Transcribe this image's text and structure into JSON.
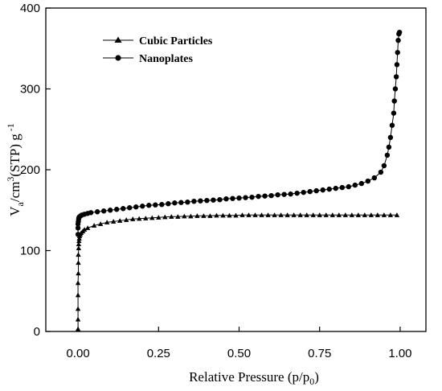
{
  "chart_data": {
    "type": "line",
    "title": "",
    "xlabel": "Relative Pressure (p/p0)",
    "xlabel_parts": {
      "main": "Relative Pressure (p/p",
      "sub": "0",
      "close": ")"
    },
    "ylabel": "Va/cm3(STP) g-1",
    "ylabel_parts": {
      "v": "V",
      "v_sub": "a",
      "unit": "/cm",
      "unit_sup": "3",
      "stp": "(STP) g",
      "g_sup": "-1"
    },
    "xlim": [
      -0.1,
      1.08
    ],
    "ylim": [
      0,
      400
    ],
    "xticks": [
      0.0,
      0.25,
      0.5,
      0.75,
      1.0
    ],
    "xtick_labels": [
      "0.00",
      "0.25",
      "0.50",
      "0.75",
      "1.00"
    ],
    "yticks": [
      0,
      100,
      200,
      300,
      400
    ],
    "ytick_labels": [
      "0",
      "100",
      "200",
      "300",
      "400"
    ],
    "legend_position": "top-left",
    "grid": false,
    "series": [
      {
        "name": "Cubic Particles",
        "marker": "triangle",
        "x": [
          0.0,
          0.0,
          0.0,
          0.0,
          0.0,
          0.001,
          0.001,
          0.001,
          0.002,
          0.002,
          0.003,
          0.004,
          0.005,
          0.007,
          0.01,
          0.015,
          0.02,
          0.03,
          0.05,
          0.07,
          0.09,
          0.11,
          0.13,
          0.15,
          0.17,
          0.19,
          0.21,
          0.23,
          0.25,
          0.27,
          0.29,
          0.31,
          0.33,
          0.35,
          0.37,
          0.39,
          0.41,
          0.43,
          0.45,
          0.47,
          0.49,
          0.51,
          0.53,
          0.55,
          0.57,
          0.59,
          0.61,
          0.63,
          0.65,
          0.67,
          0.69,
          0.71,
          0.73,
          0.75,
          0.77,
          0.79,
          0.81,
          0.83,
          0.85,
          0.87,
          0.89,
          0.91,
          0.93,
          0.95,
          0.97,
          0.99
        ],
        "values": [
          3,
          15,
          28,
          45,
          60,
          72,
          85,
          95,
          103,
          108,
          112,
          115,
          118,
          120,
          122,
          124,
          126,
          128,
          131,
          133,
          135,
          136,
          137,
          138,
          139,
          139.5,
          140,
          140.5,
          141,
          141.5,
          142,
          142,
          142.5,
          142.5,
          143,
          143,
          143,
          143.5,
          143.5,
          143.5,
          143.5,
          144,
          144,
          144,
          144,
          144,
          144,
          144,
          144,
          144,
          144,
          144,
          144,
          144,
          144,
          144,
          144,
          144,
          144,
          144,
          144,
          144,
          144,
          144,
          144,
          144
        ]
      },
      {
        "name": "Nanoplates",
        "marker": "circle",
        "x": [
          0.0,
          0.0,
          0.0,
          0.001,
          0.002,
          0.003,
          0.005,
          0.008,
          0.012,
          0.02,
          0.03,
          0.04,
          0.06,
          0.08,
          0.1,
          0.12,
          0.14,
          0.16,
          0.18,
          0.2,
          0.22,
          0.24,
          0.26,
          0.28,
          0.3,
          0.32,
          0.34,
          0.36,
          0.38,
          0.4,
          0.42,
          0.44,
          0.46,
          0.48,
          0.5,
          0.52,
          0.54,
          0.56,
          0.58,
          0.6,
          0.62,
          0.64,
          0.66,
          0.68,
          0.7,
          0.72,
          0.74,
          0.76,
          0.78,
          0.8,
          0.82,
          0.84,
          0.86,
          0.88,
          0.9,
          0.92,
          0.94,
          0.95,
          0.96,
          0.965,
          0.97,
          0.975,
          0.98,
          0.982,
          0.985,
          0.988,
          0.99,
          0.992,
          0.994,
          0.996,
          0.998
        ],
        "values": [
          120,
          128,
          133,
          136,
          139,
          141,
          142,
          143,
          144,
          145,
          146,
          147,
          148,
          149,
          150,
          151,
          152,
          153,
          154,
          155,
          156,
          156.5,
          157,
          158,
          159,
          159.5,
          160,
          161,
          161.5,
          162,
          162.5,
          163,
          164,
          164.5,
          165,
          165.5,
          166,
          167,
          167.5,
          168,
          169,
          169.5,
          170,
          171,
          172,
          173,
          174,
          175,
          176,
          177,
          178,
          179,
          181,
          183,
          186,
          190,
          197,
          205,
          218,
          228,
          240,
          255,
          270,
          285,
          300,
          315,
          330,
          345,
          360,
          368,
          370
        ]
      }
    ]
  }
}
